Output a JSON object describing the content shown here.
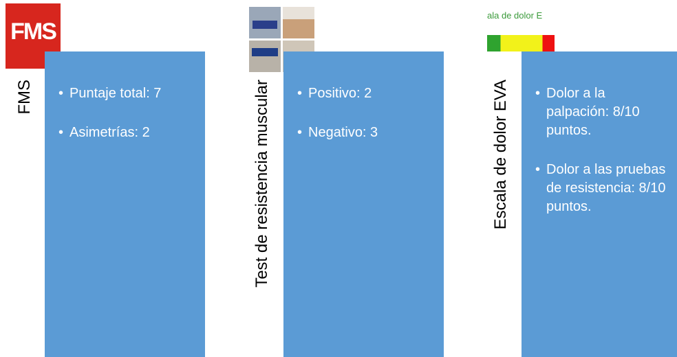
{
  "columns": [
    {
      "label": "FMS",
      "logo_text": "FMS",
      "bullets": [
        "Puntaje total: 7",
        "Asimetrías: 2"
      ]
    },
    {
      "label": "Test de resistencia muscular",
      "bullets": [
        "Positivo: 2",
        "Negativo: 3"
      ]
    },
    {
      "label": "Escala de dolor EVA",
      "logo_text": "ala de dolor E",
      "bullets": [
        "Dolor a la palpación: 8/10 puntos.",
        "Dolor a las pruebas de resistencia: 8/10 puntos."
      ]
    }
  ]
}
